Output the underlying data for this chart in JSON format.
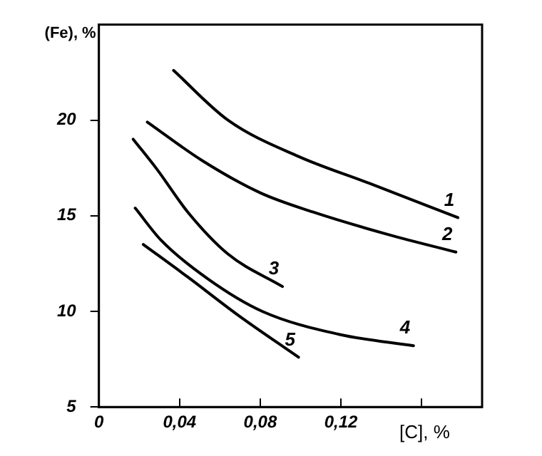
{
  "chart_data": {
    "type": "line",
    "xlabel": "[C], %",
    "ylabel": "(Fe), %",
    "xlim": [
      0,
      0.19
    ],
    "xticks": [
      0,
      {
        "value": 0.04,
        "label": "0,04"
      },
      {
        "value": 0.08,
        "label": "0,08"
      },
      {
        "value": 0.12,
        "label": "0,12"
      },
      {
        "value": 0.16,
        "label": null
      }
    ],
    "ylim": [
      5,
      25
    ],
    "yticks": [
      5,
      10,
      15,
      20
    ],
    "grid": false,
    "legend": false,
    "marker": "none",
    "line_style": "solid",
    "series": [
      {
        "name": "1",
        "color": "#000000",
        "x": [
          0.037,
          0.064,
          0.099,
          0.134,
          0.178
        ],
        "values": [
          22.6,
          20.0,
          18.1,
          16.7,
          14.9
        ]
      },
      {
        "name": "2",
        "color": "#000000",
        "x": [
          0.024,
          0.051,
          0.08,
          0.106,
          0.144,
          0.177
        ],
        "values": [
          19.9,
          17.9,
          16.2,
          15.2,
          14.0,
          13.1
        ]
      },
      {
        "name": "3",
        "color": "#000000",
        "x": [
          0.017,
          0.029,
          0.044,
          0.064,
          0.091
        ],
        "values": [
          19.0,
          17.4,
          15.2,
          13.0,
          11.3
        ]
      },
      {
        "name": "4",
        "color": "#000000",
        "x": [
          0.018,
          0.031,
          0.054,
          0.081,
          0.119,
          0.156
        ],
        "values": [
          15.4,
          13.7,
          11.7,
          10.0,
          8.8,
          8.2
        ]
      },
      {
        "name": "5",
        "color": "#000000",
        "x": [
          0.022,
          0.044,
          0.069,
          0.099
        ],
        "values": [
          13.5,
          11.8,
          9.8,
          7.6
        ]
      }
    ]
  }
}
